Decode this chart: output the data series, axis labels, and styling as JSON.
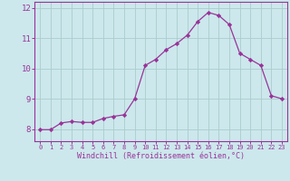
{
  "x": [
    0,
    1,
    2,
    3,
    4,
    5,
    6,
    7,
    8,
    9,
    10,
    11,
    12,
    13,
    14,
    15,
    16,
    17,
    18,
    19,
    20,
    21,
    22,
    23
  ],
  "y": [
    7.98,
    7.98,
    8.2,
    8.25,
    8.22,
    8.22,
    8.35,
    8.42,
    8.47,
    9.0,
    10.1,
    10.3,
    10.62,
    10.82,
    11.1,
    11.55,
    11.85,
    11.75,
    11.45,
    10.5,
    10.3,
    10.1,
    9.1,
    9.0
  ],
  "line_color": "#993399",
  "marker": "D",
  "marker_size": 2.2,
  "bg_color": "#cce8ec",
  "grid_color": "#aacccc",
  "xlabel": "Windchill (Refroidissement éolien,°C)",
  "xlabel_color": "#993399",
  "tick_color": "#993399",
  "axis_color": "#993399",
  "ylim": [
    7.6,
    12.2
  ],
  "yticks": [
    8,
    9,
    10,
    11,
    12
  ],
  "xticks": [
    0,
    1,
    2,
    3,
    4,
    5,
    6,
    7,
    8,
    9,
    10,
    11,
    12,
    13,
    14,
    15,
    16,
    17,
    18,
    19,
    20,
    21,
    22,
    23
  ]
}
